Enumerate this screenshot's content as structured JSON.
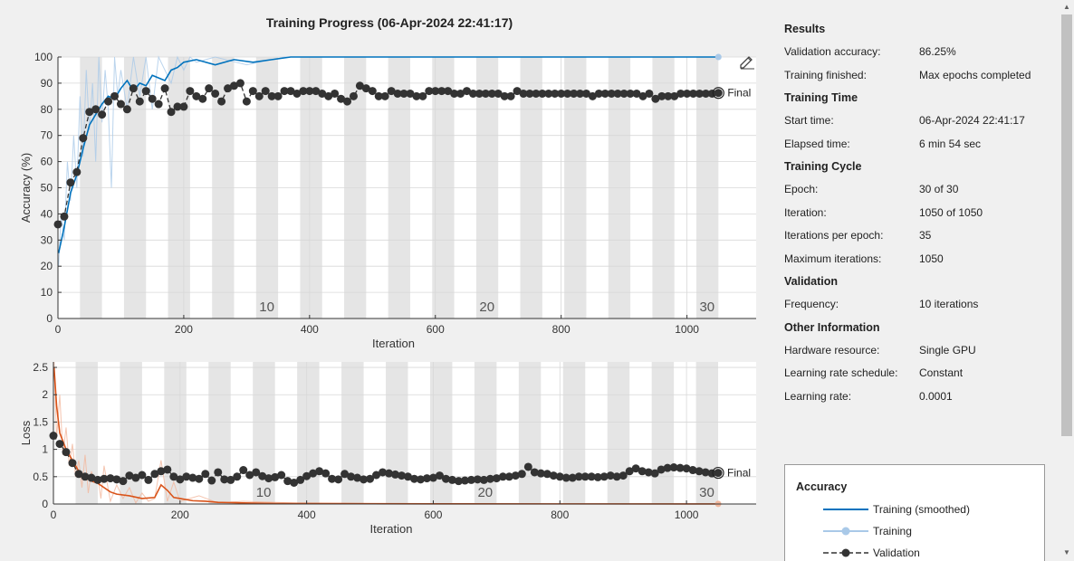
{
  "title": "Training Progress (06-Apr-2024 22:41:17)",
  "colors": {
    "train_smoothed": "#0072bd",
    "train_raw": "#a9c9e8",
    "validation": "#333333",
    "loss_smoothed": "#d95319",
    "loss_raw": "#f2b79c",
    "epoch_band": "#e5e5e5"
  },
  "chart_data": [
    {
      "type": "line",
      "ylabel": "Accuracy (%)",
      "xlabel": "Iteration",
      "xlim": [
        0,
        1110
      ],
      "ylim": [
        0,
        100
      ],
      "xticks": [
        0,
        200,
        400,
        600,
        800,
        1000
      ],
      "yticks": [
        0,
        10,
        20,
        30,
        40,
        50,
        60,
        70,
        80,
        90,
        100
      ],
      "epoch_labels": [
        {
          "text": "10",
          "x": 332
        },
        {
          "text": "20",
          "x": 682
        },
        {
          "text": "30",
          "x": 1032
        }
      ],
      "final_label": "Final",
      "series": [
        {
          "name": "Training (smoothed)",
          "x": [
            1,
            10,
            20,
            30,
            40,
            50,
            60,
            70,
            80,
            90,
            100,
            110,
            120,
            130,
            140,
            150,
            160,
            170,
            180,
            190,
            200,
            220,
            250,
            280,
            310,
            340,
            370,
            400,
            500,
            600,
            700,
            800,
            900,
            1000,
            1050
          ],
          "values": [
            25,
            35,
            48,
            55,
            65,
            74,
            78,
            82,
            85,
            84,
            88,
            91,
            87,
            90,
            89,
            93,
            92,
            91,
            95,
            96,
            98,
            99,
            97,
            99,
            98,
            99,
            100,
            100,
            100,
            100,
            100,
            100,
            100,
            100,
            100
          ]
        },
        {
          "name": "Training",
          "x": [
            1,
            5,
            10,
            15,
            20,
            25,
            30,
            35,
            40,
            45,
            50,
            55,
            60,
            65,
            70,
            75,
            80,
            85,
            90,
            95,
            100,
            110,
            120,
            130,
            140,
            150,
            160,
            170,
            180,
            190,
            200,
            210,
            220,
            250,
            300,
            360,
            400,
            600,
            800,
            1050
          ],
          "values": [
            20,
            40,
            30,
            60,
            45,
            70,
            50,
            85,
            62,
            95,
            72,
            90,
            60,
            100,
            75,
            95,
            80,
            50,
            100,
            85,
            95,
            80,
            100,
            85,
            100,
            80,
            100,
            95,
            90,
            100,
            95,
            100,
            98,
            100,
            97,
            100,
            100,
            100,
            100,
            100
          ]
        },
        {
          "name": "Validation",
          "x": [
            0,
            10,
            20,
            30,
            40,
            50,
            60,
            70,
            80,
            90,
            100,
            110,
            120,
            130,
            140,
            150,
            160,
            170,
            180,
            190,
            200,
            210,
            220,
            230,
            240,
            250,
            260,
            270,
            280,
            290,
            300,
            310,
            320,
            330,
            340,
            350,
            360,
            370,
            380,
            390,
            400,
            410,
            420,
            430,
            440,
            450,
            460,
            470,
            480,
            490,
            500,
            510,
            520,
            530,
            540,
            550,
            560,
            570,
            580,
            590,
            600,
            610,
            620,
            630,
            640,
            650,
            660,
            670,
            680,
            690,
            700,
            710,
            720,
            730,
            740,
            750,
            760,
            770,
            780,
            790,
            800,
            810,
            820,
            830,
            840,
            850,
            860,
            870,
            880,
            890,
            900,
            910,
            920,
            930,
            940,
            950,
            960,
            970,
            980,
            990,
            1000,
            1010,
            1020,
            1030,
            1040,
            1050
          ],
          "values": [
            36,
            39,
            52,
            56,
            69,
            79,
            80,
            78,
            83,
            85,
            82,
            80,
            88,
            83,
            87,
            84,
            82,
            88,
            79,
            81,
            81,
            87,
            85,
            84,
            88,
            86,
            83,
            88,
            89,
            90,
            83,
            87,
            85,
            87,
            85,
            85,
            87,
            87,
            86,
            87,
            87,
            87,
            86,
            85,
            86,
            84,
            83,
            85,
            89,
            88,
            87,
            85,
            85,
            87,
            86,
            86,
            86,
            85,
            85,
            87,
            87,
            87,
            87,
            86,
            86,
            87,
            86,
            86,
            86,
            86,
            86,
            85,
            85,
            87,
            86,
            86,
            86,
            86,
            86,
            86,
            86,
            86,
            86,
            86,
            86,
            85,
            86,
            86,
            86,
            86,
            86,
            86,
            86,
            85,
            86,
            84,
            85,
            85,
            85,
            86,
            86,
            86,
            86,
            86,
            86,
            86.25
          ]
        }
      ]
    },
    {
      "type": "line",
      "ylabel": "Loss",
      "xlabel": "Iteration",
      "xlim": [
        0,
        1110
      ],
      "ylim": [
        0,
        2.6
      ],
      "xticks": [
        0,
        200,
        400,
        600,
        800,
        1000
      ],
      "yticks": [
        0,
        0.5,
        1,
        1.5,
        2,
        2.5
      ],
      "ytick_labels": [
        "0",
        "0.5",
        "1",
        "1.5",
        "2",
        "2.5"
      ],
      "epoch_labels": [
        {
          "text": "10",
          "x": 332
        },
        {
          "text": "20",
          "x": 682
        },
        {
          "text": "30",
          "x": 1032
        }
      ],
      "final_label": "Final",
      "series": [
        {
          "name": "Training (smoothed)",
          "x": [
            1,
            5,
            10,
            20,
            30,
            40,
            50,
            60,
            70,
            80,
            90,
            100,
            120,
            140,
            160,
            170,
            180,
            190,
            200,
            220,
            240,
            260,
            300,
            350,
            400,
            500,
            600,
            800,
            1050
          ],
          "values": [
            2.5,
            1.8,
            1.3,
            1.0,
            0.8,
            0.6,
            0.5,
            0.42,
            0.38,
            0.3,
            0.22,
            0.18,
            0.15,
            0.1,
            0.12,
            0.35,
            0.25,
            0.12,
            0.1,
            0.06,
            0.05,
            0.03,
            0.02,
            0.01,
            0.01,
            0.005,
            0.003,
            0.002,
            0.001
          ]
        },
        {
          "name": "Training",
          "x": [
            1,
            5,
            10,
            15,
            20,
            25,
            30,
            35,
            40,
            45,
            50,
            55,
            60,
            65,
            70,
            75,
            80,
            90,
            100,
            110,
            120,
            130,
            140,
            150,
            160,
            170,
            180,
            190,
            200,
            230,
            260,
            300,
            400,
            1050
          ],
          "values": [
            2.6,
            1.2,
            2.0,
            0.9,
            1.4,
            0.7,
            1.1,
            0.5,
            0.8,
            0.3,
            0.9,
            0.2,
            0.6,
            0.4,
            0.5,
            0.1,
            0.7,
            0.05,
            0.35,
            0.1,
            0.3,
            0.02,
            0.2,
            0.05,
            0.1,
            0.8,
            0.05,
            0.4,
            0.05,
            0.15,
            0.02,
            0.05,
            0.01,
            0.002
          ]
        },
        {
          "name": "Validation",
          "x": [
            0,
            10,
            20,
            30,
            40,
            50,
            60,
            70,
            80,
            90,
            100,
            110,
            120,
            130,
            140,
            150,
            160,
            170,
            180,
            190,
            200,
            210,
            220,
            230,
            240,
            250,
            260,
            270,
            280,
            290,
            300,
            310,
            320,
            330,
            340,
            350,
            360,
            370,
            380,
            390,
            400,
            410,
            420,
            430,
            440,
            450,
            460,
            470,
            480,
            490,
            500,
            510,
            520,
            530,
            540,
            550,
            560,
            570,
            580,
            590,
            600,
            610,
            620,
            630,
            640,
            650,
            660,
            670,
            680,
            690,
            700,
            710,
            720,
            730,
            740,
            750,
            760,
            770,
            780,
            790,
            800,
            810,
            820,
            830,
            840,
            850,
            860,
            870,
            880,
            890,
            900,
            910,
            920,
            930,
            940,
            950,
            960,
            970,
            980,
            990,
            1000,
            1010,
            1020,
            1030,
            1040,
            1050
          ],
          "values": [
            1.25,
            1.1,
            0.95,
            0.75,
            0.55,
            0.5,
            0.48,
            0.44,
            0.46,
            0.47,
            0.45,
            0.42,
            0.52,
            0.48,
            0.53,
            0.44,
            0.55,
            0.6,
            0.63,
            0.5,
            0.45,
            0.5,
            0.48,
            0.46,
            0.55,
            0.43,
            0.58,
            0.45,
            0.44,
            0.5,
            0.62,
            0.53,
            0.58,
            0.51,
            0.47,
            0.49,
            0.53,
            0.42,
            0.39,
            0.44,
            0.51,
            0.56,
            0.6,
            0.56,
            0.46,
            0.45,
            0.55,
            0.5,
            0.48,
            0.45,
            0.46,
            0.53,
            0.58,
            0.56,
            0.54,
            0.52,
            0.5,
            0.46,
            0.45,
            0.47,
            0.48,
            0.52,
            0.46,
            0.44,
            0.42,
            0.43,
            0.44,
            0.45,
            0.44,
            0.46,
            0.47,
            0.5,
            0.5,
            0.52,
            0.55,
            0.68,
            0.58,
            0.56,
            0.55,
            0.52,
            0.5,
            0.48,
            0.48,
            0.5,
            0.5,
            0.5,
            0.49,
            0.5,
            0.52,
            0.5,
            0.52,
            0.6,
            0.65,
            0.6,
            0.58,
            0.56,
            0.63,
            0.66,
            0.67,
            0.66,
            0.65,
            0.62,
            0.6,
            0.58,
            0.56,
            0.57
          ]
        }
      ]
    }
  ],
  "panel": [
    {
      "heading": "Results",
      "rows": [
        {
          "k": "Validation accuracy:",
          "v": "86.25%"
        },
        {
          "k": "Training finished:",
          "v": "Max epochs completed"
        }
      ]
    },
    {
      "heading": "Training Time",
      "rows": [
        {
          "k": "Start time:",
          "v": "06-Apr-2024 22:41:17"
        },
        {
          "k": "Elapsed time:",
          "v": "6 min 54 sec"
        }
      ]
    },
    {
      "heading": "Training Cycle",
      "rows": [
        {
          "k": "Epoch:",
          "v": "30 of 30"
        },
        {
          "k": "Iteration:",
          "v": "1050 of 1050"
        },
        {
          "k": "Iterations per epoch:",
          "v": "35"
        },
        {
          "k": "Maximum iterations:",
          "v": "1050"
        }
      ]
    },
    {
      "heading": "Validation",
      "rows": [
        {
          "k": "Frequency:",
          "v": "10 iterations"
        }
      ]
    },
    {
      "heading": "Other Information",
      "rows": [
        {
          "k": "Hardware resource:",
          "v": "Single GPU"
        },
        {
          "k": "Learning rate schedule:",
          "v": "Constant"
        },
        {
          "k": "Learning rate:",
          "v": "0.0001"
        }
      ]
    }
  ],
  "legend": {
    "title": "Accuracy",
    "items": [
      {
        "label": "Training (smoothed)"
      },
      {
        "label": "Training"
      },
      {
        "label": "Validation"
      }
    ]
  },
  "icons": {
    "edit": "pencil-icon",
    "scroll_up": "chevron-up-icon",
    "scroll_down": "chevron-down-icon"
  }
}
